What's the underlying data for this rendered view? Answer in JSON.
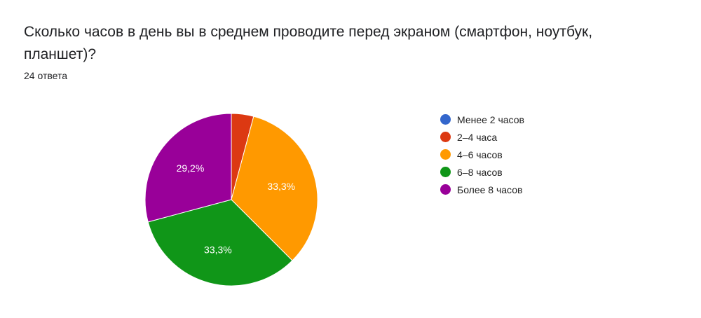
{
  "question": {
    "title": "Сколько часов в день вы в среднем проводите перед экраном (смартфон, ноутбук, планшет)?",
    "response_count": "24 ответа"
  },
  "chart_data": {
    "type": "pie",
    "title": "Сколько часов в день вы в среднем проводите перед экраном (смартфон, ноутбук, планшет)?",
    "categories": [
      "Менее 2 часов",
      "2–4 часа",
      "4–6 часов",
      "6–8 часов",
      "Более 8 часов"
    ],
    "values": [
      0,
      1,
      8,
      8,
      7
    ],
    "percent_labels": [
      "",
      "",
      "33,3%",
      "33,3%",
      "29,2%"
    ],
    "colors": [
      "#3366cc",
      "#dc3912",
      "#ff9900",
      "#109618",
      "#990099"
    ],
    "legend": "right"
  }
}
